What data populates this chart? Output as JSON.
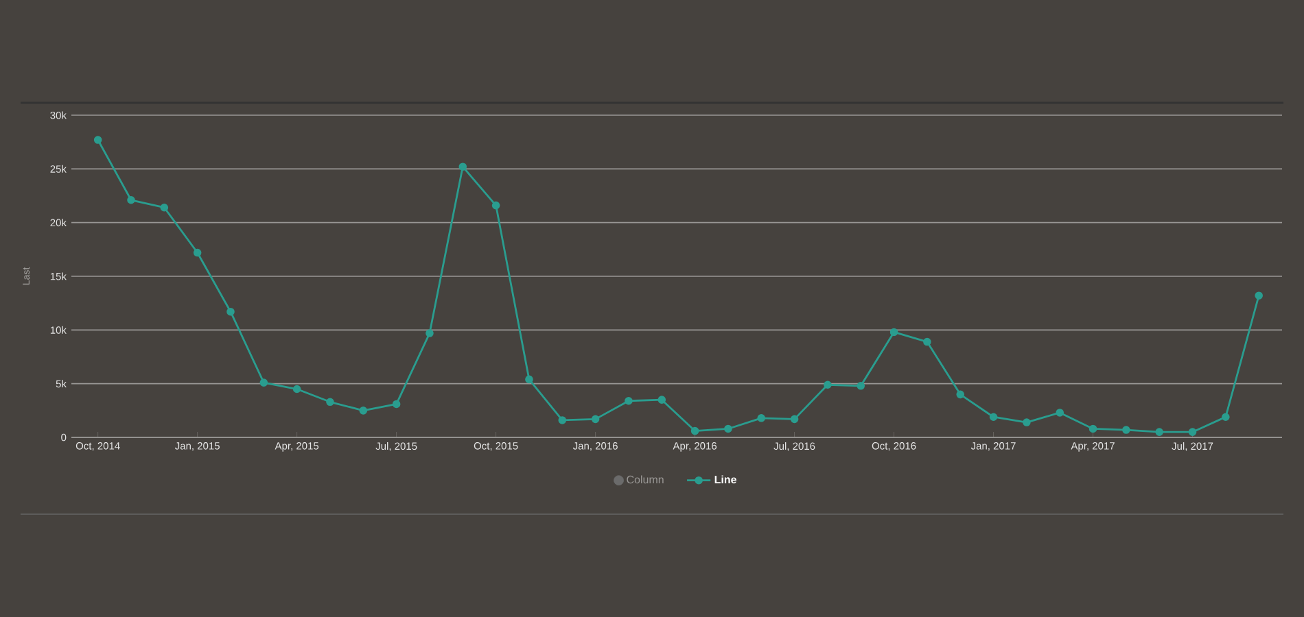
{
  "chart_data": {
    "type": "line",
    "ylabel": "Last",
    "x": [
      "2014-10",
      "2014-11",
      "2014-12",
      "2015-01",
      "2015-02",
      "2015-03",
      "2015-04",
      "2015-05",
      "2015-06",
      "2015-07",
      "2015-08",
      "2015-09",
      "2015-10",
      "2015-11",
      "2015-12",
      "2016-01",
      "2016-02",
      "2016-03",
      "2016-04",
      "2016-05",
      "2016-06",
      "2016-07",
      "2016-08",
      "2016-09",
      "2016-10",
      "2016-11",
      "2016-12",
      "2017-01",
      "2017-02",
      "2017-03",
      "2017-04",
      "2017-05",
      "2017-06",
      "2017-07",
      "2017-08",
      "2017-09"
    ],
    "series": [
      {
        "name": "Column",
        "color": "#6b6b6b",
        "values": [
          null,
          null,
          null,
          null,
          null,
          null,
          null,
          null,
          null,
          null,
          null,
          null,
          null,
          null,
          null,
          null,
          null,
          null,
          null,
          null,
          null,
          null,
          null,
          null,
          null,
          null,
          null,
          null,
          null,
          null,
          null,
          null,
          null,
          null,
          null,
          null
        ]
      },
      {
        "name": "Line",
        "color": "#2a9d8f",
        "values": [
          27700,
          22100,
          21400,
          17200,
          11700,
          5100,
          4500,
          3300,
          2500,
          3100,
          9700,
          25200,
          21600,
          5400,
          1600,
          1700,
          3400,
          3500,
          600,
          800,
          1800,
          1700,
          4900,
          4800,
          9800,
          8900,
          4000,
          1900,
          1400,
          2300,
          800,
          700,
          500,
          500,
          1900,
          13200
        ]
      }
    ],
    "xlim": [
      "2014-09-07",
      "2017-09-22"
    ],
    "xticks": [
      {
        "value": "2014-10",
        "label": "Oct, 2014"
      },
      {
        "value": "2015-01",
        "label": "Jan, 2015"
      },
      {
        "value": "2015-04",
        "label": "Apr, 2015"
      },
      {
        "value": "2015-07",
        "label": "Jul, 2015"
      },
      {
        "value": "2015-10",
        "label": "Oct, 2015"
      },
      {
        "value": "2016-01",
        "label": "Jan, 2016"
      },
      {
        "value": "2016-04",
        "label": "Apr, 2016"
      },
      {
        "value": "2016-07",
        "label": "Jul, 2016"
      },
      {
        "value": "2016-10",
        "label": "Oct, 2016"
      },
      {
        "value": "2017-01",
        "label": "Jan, 2017"
      },
      {
        "value": "2017-04",
        "label": "Apr, 2017"
      },
      {
        "value": "2017-07",
        "label": "Jul, 2017"
      }
    ],
    "ylim": [
      0,
      30000
    ],
    "yticks": [
      {
        "value": 0,
        "label": "0"
      },
      {
        "value": 5000,
        "label": "5k"
      },
      {
        "value": 10000,
        "label": "10k"
      },
      {
        "value": 15000,
        "label": "15k"
      },
      {
        "value": 20000,
        "label": "20k"
      },
      {
        "value": 25000,
        "label": "25k"
      },
      {
        "value": 30000,
        "label": "30k"
      }
    ],
    "grid": "y",
    "legend": "bottom",
    "marker": "circle",
    "line_style": "solid"
  }
}
